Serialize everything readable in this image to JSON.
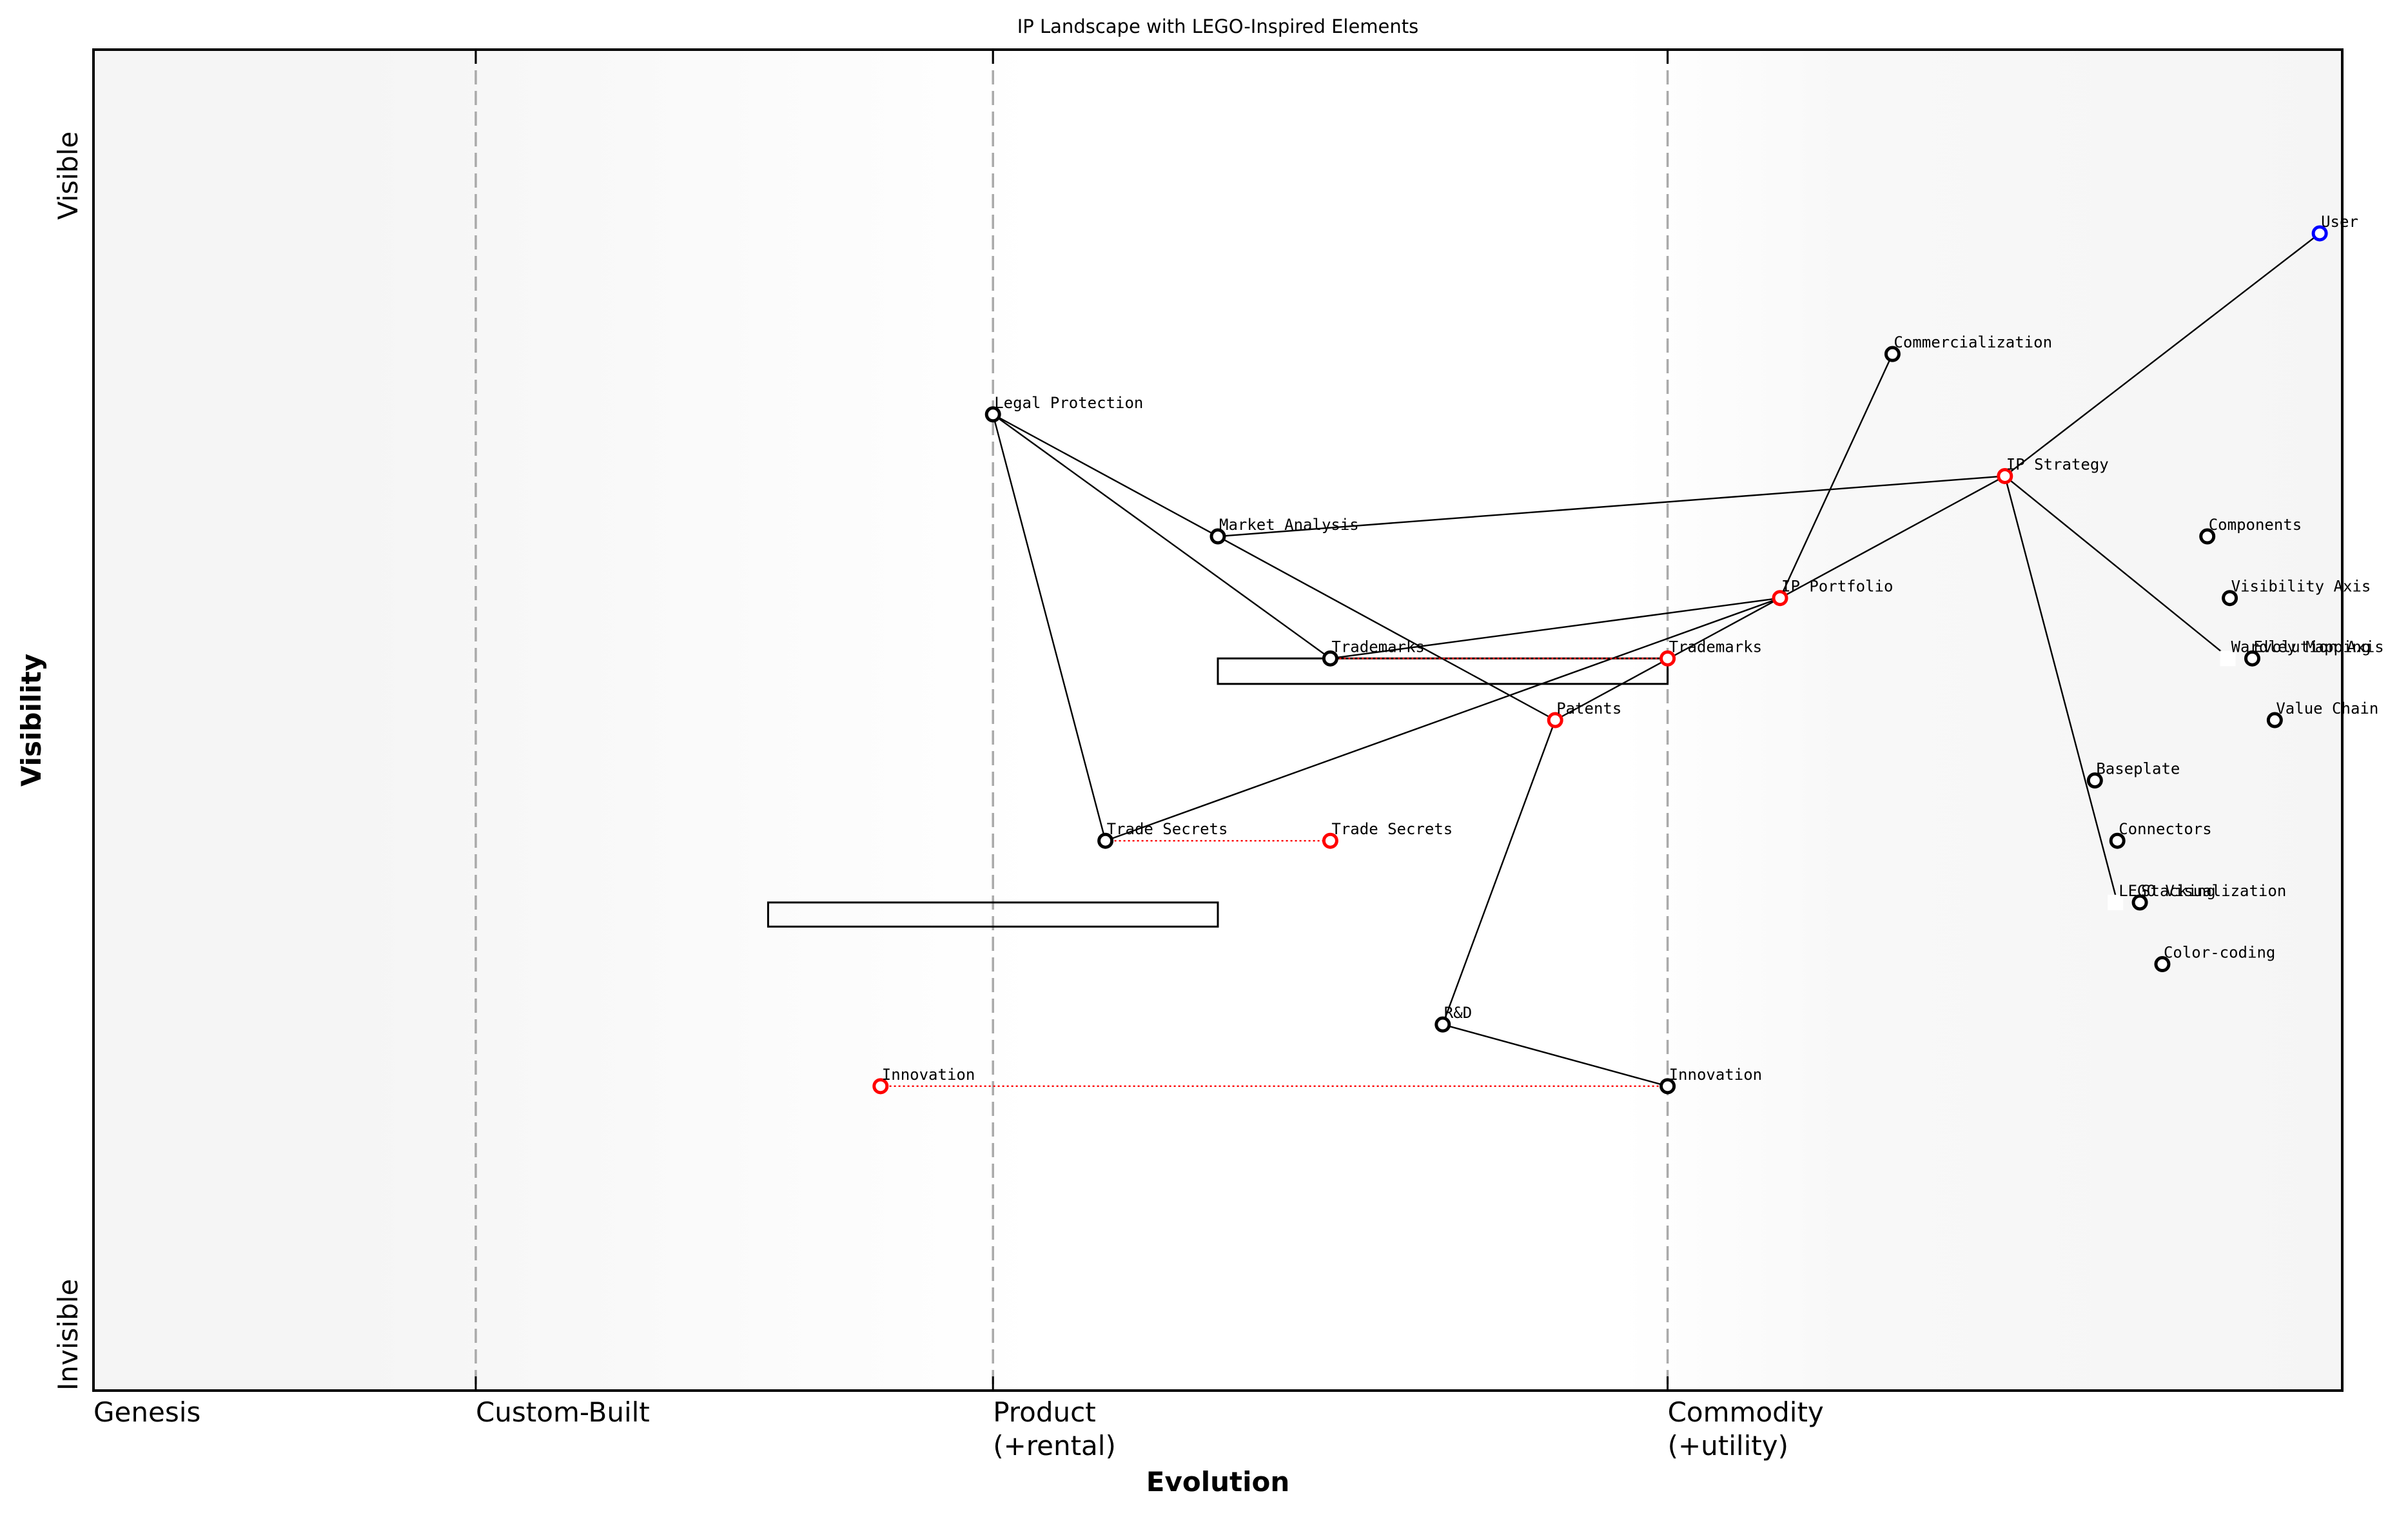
{
  "chart_data": {
    "type": "scatter",
    "subtype": "wardley-map",
    "title": "IP Landscape with LEGO-Inspired Elements",
    "xlabel": "Evolution",
    "ylabel": "Visibility",
    "xlim": [
      0,
      1
    ],
    "ylim": [
      0,
      1
    ],
    "grid": false,
    "y_ticks": [
      {
        "label": "Visible",
        "y": 0.9
      },
      {
        "label": "Invisible",
        "y": 0.0
      }
    ],
    "stages": [
      {
        "label": "Genesis",
        "x": 0.0,
        "line": false
      },
      {
        "label": "Custom-Built",
        "x": 0.17,
        "line": true
      },
      {
        "label": "Product",
        "label2": "(+rental)",
        "x": 0.4,
        "line": true
      },
      {
        "label": "Commodity",
        "label2": "(+utility)",
        "x": 0.7,
        "line": true
      }
    ],
    "colors": {
      "node_default": "#000000",
      "node_anchor": "#0000ff",
      "node_evolving": "#ff0000",
      "evolution_arrow": "#ff0000",
      "stage_line": "#aaaaaa",
      "bg_edge": "#f5f5f5",
      "bg_center": "#ffffff"
    },
    "nodes": [
      {
        "id": "user",
        "label": "User",
        "x": 0.99,
        "y": 0.863,
        "color": "#0000ff"
      },
      {
        "id": "commercialization",
        "label": "Commercialization",
        "x": 0.8,
        "y": 0.773,
        "color": "#000000"
      },
      {
        "id": "legal_protection",
        "label": "Legal Protection",
        "x": 0.4,
        "y": 0.728,
        "color": "#000000"
      },
      {
        "id": "ip_strategy",
        "label": "IP Strategy",
        "x": 0.85,
        "y": 0.682,
        "color": "#ff0000"
      },
      {
        "id": "market_analysis",
        "label": "Market Analysis",
        "x": 0.5,
        "y": 0.637,
        "color": "#000000"
      },
      {
        "id": "components",
        "label": "Components",
        "x": 0.94,
        "y": 0.637,
        "color": "#000000"
      },
      {
        "id": "ip_portfolio",
        "label": "IP Portfolio",
        "x": 0.75,
        "y": 0.591,
        "color": "#ff0000"
      },
      {
        "id": "visibility_axis",
        "label": "Visibility Axis",
        "x": 0.95,
        "y": 0.591,
        "color": "#000000"
      },
      {
        "id": "trademarks",
        "label": "Trademarks",
        "x": 0.55,
        "y": 0.546,
        "color": "#000000"
      },
      {
        "id": "trademarks_evolved",
        "label": "Trademarks",
        "x": 0.7,
        "y": 0.546,
        "color": "#ff0000"
      },
      {
        "id": "wardley_mapping",
        "label": "Wardley Mapping",
        "x": 0.95,
        "y": 0.546,
        "color": "#000000",
        "hidden": true
      },
      {
        "id": "evolution_axis",
        "label": "Evolution Axis",
        "x": 0.96,
        "y": 0.546,
        "color": "#000000"
      },
      {
        "id": "patents",
        "label": "Patents",
        "x": 0.65,
        "y": 0.5,
        "color": "#ff0000"
      },
      {
        "id": "value_chain",
        "label": "Value Chain",
        "x": 0.97,
        "y": 0.5,
        "color": "#000000"
      },
      {
        "id": "baseplate",
        "label": "Baseplate",
        "x": 0.89,
        "y": 0.455,
        "color": "#000000"
      },
      {
        "id": "trade_secrets",
        "label": "Trade Secrets",
        "x": 0.45,
        "y": 0.41,
        "color": "#000000"
      },
      {
        "id": "trade_secrets_evolved",
        "label": "Trade Secrets",
        "x": 0.55,
        "y": 0.41,
        "color": "#ff0000"
      },
      {
        "id": "connectors",
        "label": "Connectors",
        "x": 0.9,
        "y": 0.41,
        "color": "#000000"
      },
      {
        "id": "lego_visualization",
        "label": "LEGO Visualization",
        "x": 0.9,
        "y": 0.364,
        "color": "#000000",
        "hidden": true
      },
      {
        "id": "stacking",
        "label": "Stacking",
        "x": 0.91,
        "y": 0.364,
        "color": "#000000"
      },
      {
        "id": "color_coding",
        "label": "Color-coding",
        "x": 0.92,
        "y": 0.318,
        "color": "#000000"
      },
      {
        "id": "rnd",
        "label": "R&D",
        "x": 0.6,
        "y": 0.273,
        "color": "#000000"
      },
      {
        "id": "innovation",
        "label": "Innovation",
        "x": 0.7,
        "y": 0.227,
        "color": "#000000"
      },
      {
        "id": "innovation_evolved",
        "label": "Innovation",
        "x": 0.35,
        "y": 0.227,
        "color": "#ff0000"
      }
    ],
    "edges": [
      [
        "user",
        "ip_strategy"
      ],
      [
        "ip_strategy",
        "market_analysis"
      ],
      [
        "ip_strategy",
        "ip_portfolio"
      ],
      [
        "ip_strategy",
        "wardley_mapping"
      ],
      [
        "ip_strategy",
        "lego_visualization"
      ],
      [
        "commercialization",
        "ip_portfolio"
      ],
      [
        "ip_portfolio",
        "trademarks"
      ],
      [
        "ip_portfolio",
        "trade_secrets"
      ],
      [
        "ip_portfolio",
        "patents"
      ],
      [
        "legal_protection",
        "market_analysis"
      ],
      [
        "legal_protection",
        "trademarks"
      ],
      [
        "legal_protection",
        "trade_secrets"
      ],
      [
        "market_analysis",
        "patents"
      ],
      [
        "patents",
        "rnd"
      ],
      [
        "rnd",
        "innovation"
      ]
    ],
    "evolution_arrows": [
      [
        "trademarks",
        "trademarks_evolved"
      ],
      [
        "trade_secrets",
        "trade_secrets_evolved"
      ],
      [
        "innovation",
        "innovation_evolved"
      ]
    ],
    "inertia_boxes": [
      {
        "x0": 0.5,
        "x1": 0.7,
        "y0": 0.527,
        "y1": 0.546
      },
      {
        "x0": 0.3,
        "x1": 0.5,
        "y0": 0.346,
        "y1": 0.364
      }
    ]
  }
}
